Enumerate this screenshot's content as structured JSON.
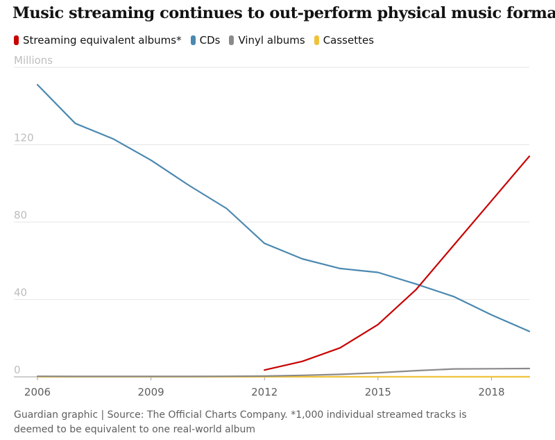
{
  "chart_data": {
    "type": "line",
    "title": "Music streaming continues to out-perform physical music formats",
    "ylabel": "Millions",
    "xlim": [
      2006,
      2019
    ],
    "ylim": [
      0,
      160
    ],
    "yticks": [
      0,
      40,
      80,
      120
    ],
    "xticks": [
      2006,
      2009,
      2012,
      2015,
      2018
    ],
    "grid": true,
    "legend_position": "top-left",
    "series": [
      {
        "name": "Streaming equivalent albums*",
        "color": "#c70000",
        "points": [
          [
            2012,
            3.5
          ],
          [
            2013,
            8
          ],
          [
            2014,
            15
          ],
          [
            2015,
            27
          ],
          [
            2016,
            45
          ],
          [
            2017,
            68
          ],
          [
            2018,
            91
          ],
          [
            2019,
            114
          ]
        ]
      },
      {
        "name": "CDs",
        "color": "#4a88b0",
        "points": [
          [
            2006,
            151
          ],
          [
            2007,
            131
          ],
          [
            2008,
            123
          ],
          [
            2009,
            112
          ],
          [
            2010,
            99
          ],
          [
            2011,
            87
          ],
          [
            2012,
            69
          ],
          [
            2013,
            61
          ],
          [
            2014,
            56
          ],
          [
            2015,
            54
          ],
          [
            2016,
            48
          ],
          [
            2017,
            41.5
          ],
          [
            2018,
            32
          ],
          [
            2019,
            23.5
          ]
        ]
      },
      {
        "name": "Vinyl albums",
        "color": "#8a8a8a",
        "points": [
          [
            2006,
            0.3
          ],
          [
            2007,
            0.2
          ],
          [
            2008,
            0.2
          ],
          [
            2009,
            0.2
          ],
          [
            2010,
            0.2
          ],
          [
            2011,
            0.3
          ],
          [
            2012,
            0.4
          ],
          [
            2013,
            0.8
          ],
          [
            2014,
            1.3
          ],
          [
            2015,
            2.1
          ],
          [
            2016,
            3.2
          ],
          [
            2017,
            4.1
          ],
          [
            2018,
            4.2
          ],
          [
            2019,
            4.3
          ]
        ]
      },
      {
        "name": "Cassettes",
        "color": "#f0c23b",
        "points": [
          [
            2006,
            0.05
          ],
          [
            2007,
            0.05
          ],
          [
            2008,
            0.05
          ],
          [
            2009,
            0.05
          ],
          [
            2010,
            0.05
          ],
          [
            2011,
            0.05
          ],
          [
            2012,
            0.05
          ],
          [
            2013,
            0.05
          ],
          [
            2014,
            0.05
          ],
          [
            2015,
            0.05
          ],
          [
            2016,
            0.05
          ],
          [
            2017,
            0.05
          ],
          [
            2018,
            0.05
          ],
          [
            2019,
            0.05
          ]
        ]
      }
    ]
  },
  "footer": {
    "source": "Guardian graphic | Source: The Official Charts Company. *1,000 individual streamed tracks is deemed to be equivalent to one real-world album"
  }
}
